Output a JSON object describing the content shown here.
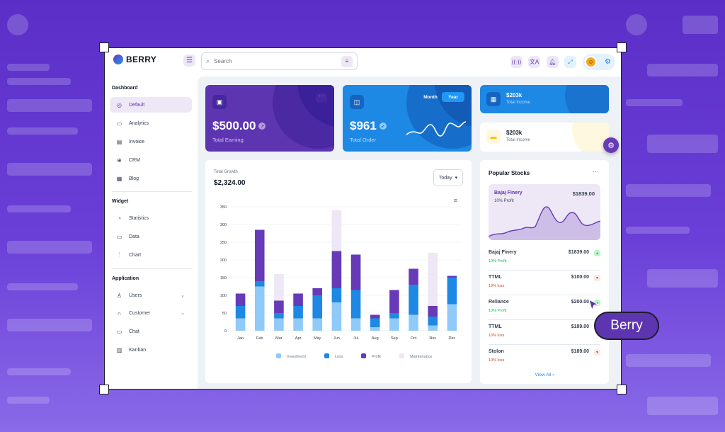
{
  "app": {
    "name": "BERRY"
  },
  "search": {
    "placeholder": "Search"
  },
  "sidebar": {
    "sections": [
      {
        "title": "Dashboard",
        "items": [
          {
            "label": "Default",
            "icon": "dashboard-icon",
            "active": true
          },
          {
            "label": "Analytics",
            "icon": "device-analytics-icon"
          },
          {
            "label": "Invoice",
            "icon": "invoice-icon"
          },
          {
            "label": "CRM",
            "icon": "crm-icon"
          },
          {
            "label": "Blog",
            "icon": "blog-icon"
          }
        ]
      },
      {
        "title": "Widget",
        "items": [
          {
            "label": "Statistics",
            "icon": "statistics-icon"
          },
          {
            "label": "Data",
            "icon": "data-icon"
          },
          {
            "label": "Chart",
            "icon": "chart-icon"
          }
        ]
      },
      {
        "title": "Application",
        "items": [
          {
            "label": "Users",
            "icon": "users-icon",
            "expandable": true
          },
          {
            "label": "Customer",
            "icon": "customer-icon",
            "expandable": true
          },
          {
            "label": "Chat",
            "icon": "chat-icon"
          },
          {
            "label": "Kanban",
            "icon": "kanban-icon"
          }
        ]
      }
    ]
  },
  "cards": {
    "earning": {
      "value": "$500.00",
      "label": "Total Earning"
    },
    "order": {
      "value": "$961",
      "label": "Total Order",
      "toggle_month": "Month",
      "toggle_year": "Year"
    },
    "income1": {
      "value": "$203k",
      "label": "Total Income"
    },
    "income2": {
      "value": "$203k",
      "label": "Total Income"
    }
  },
  "growth": {
    "label": "Total Growth",
    "value": "$2,324.00",
    "period": "Today"
  },
  "chart_data": {
    "type": "bar",
    "stacked": true,
    "categories": [
      "Jan",
      "Feb",
      "Mar",
      "Apr",
      "May",
      "Jun",
      "Jul",
      "Aug",
      "Sep",
      "Oct",
      "Nov",
      "Dec"
    ],
    "series": [
      {
        "name": "Investment",
        "color": "#90caf9",
        "values": [
          35,
          125,
          35,
          35,
          35,
          80,
          35,
          10,
          35,
          45,
          15,
          75
        ]
      },
      {
        "name": "Loss",
        "color": "#1e88e5",
        "values": [
          35,
          15,
          15,
          35,
          65,
          40,
          80,
          25,
          15,
          85,
          25,
          75
        ]
      },
      {
        "name": "Profit",
        "color": "#673ab7",
        "values": [
          35,
          145,
          35,
          35,
          20,
          105,
          100,
          10,
          65,
          45,
          30,
          5
        ]
      },
      {
        "name": "Maintenance",
        "color": "#ede7f6",
        "values": [
          0,
          0,
          75,
          0,
          0,
          115,
          0,
          0,
          0,
          0,
          150,
          0
        ]
      }
    ],
    "ylim": [
      0,
      350
    ],
    "yticks": [
      0,
      50,
      100,
      150,
      200,
      250,
      300,
      350
    ],
    "legend": "bottom",
    "grid": true
  },
  "stocks": {
    "title": "Popular Stocks",
    "hero": {
      "name": "Bajaj Finery",
      "value": "$1839.00",
      "sub": "10% Profit"
    },
    "rows": [
      {
        "name": "Bajaj Finery",
        "value": "$1839.00",
        "sub": "10% Profit",
        "trend": "up"
      },
      {
        "name": "TTML",
        "value": "$100.00",
        "sub": "10% loss",
        "trend": "down"
      },
      {
        "name": "Reliance",
        "value": "$200.00",
        "sub": "10% Profit",
        "trend": "up"
      },
      {
        "name": "TTML",
        "value": "$189.00",
        "sub": "10% loss",
        "trend": "down"
      },
      {
        "name": "Stolon",
        "value": "$189.00",
        "sub": "10% loss",
        "trend": "down"
      }
    ],
    "view_all": "View All"
  },
  "badge": {
    "label": "Berry"
  },
  "colors": {
    "primary": "#5e35b1",
    "secondary": "#1e88e5",
    "profit": "#00c853",
    "loss": "#d84315"
  }
}
